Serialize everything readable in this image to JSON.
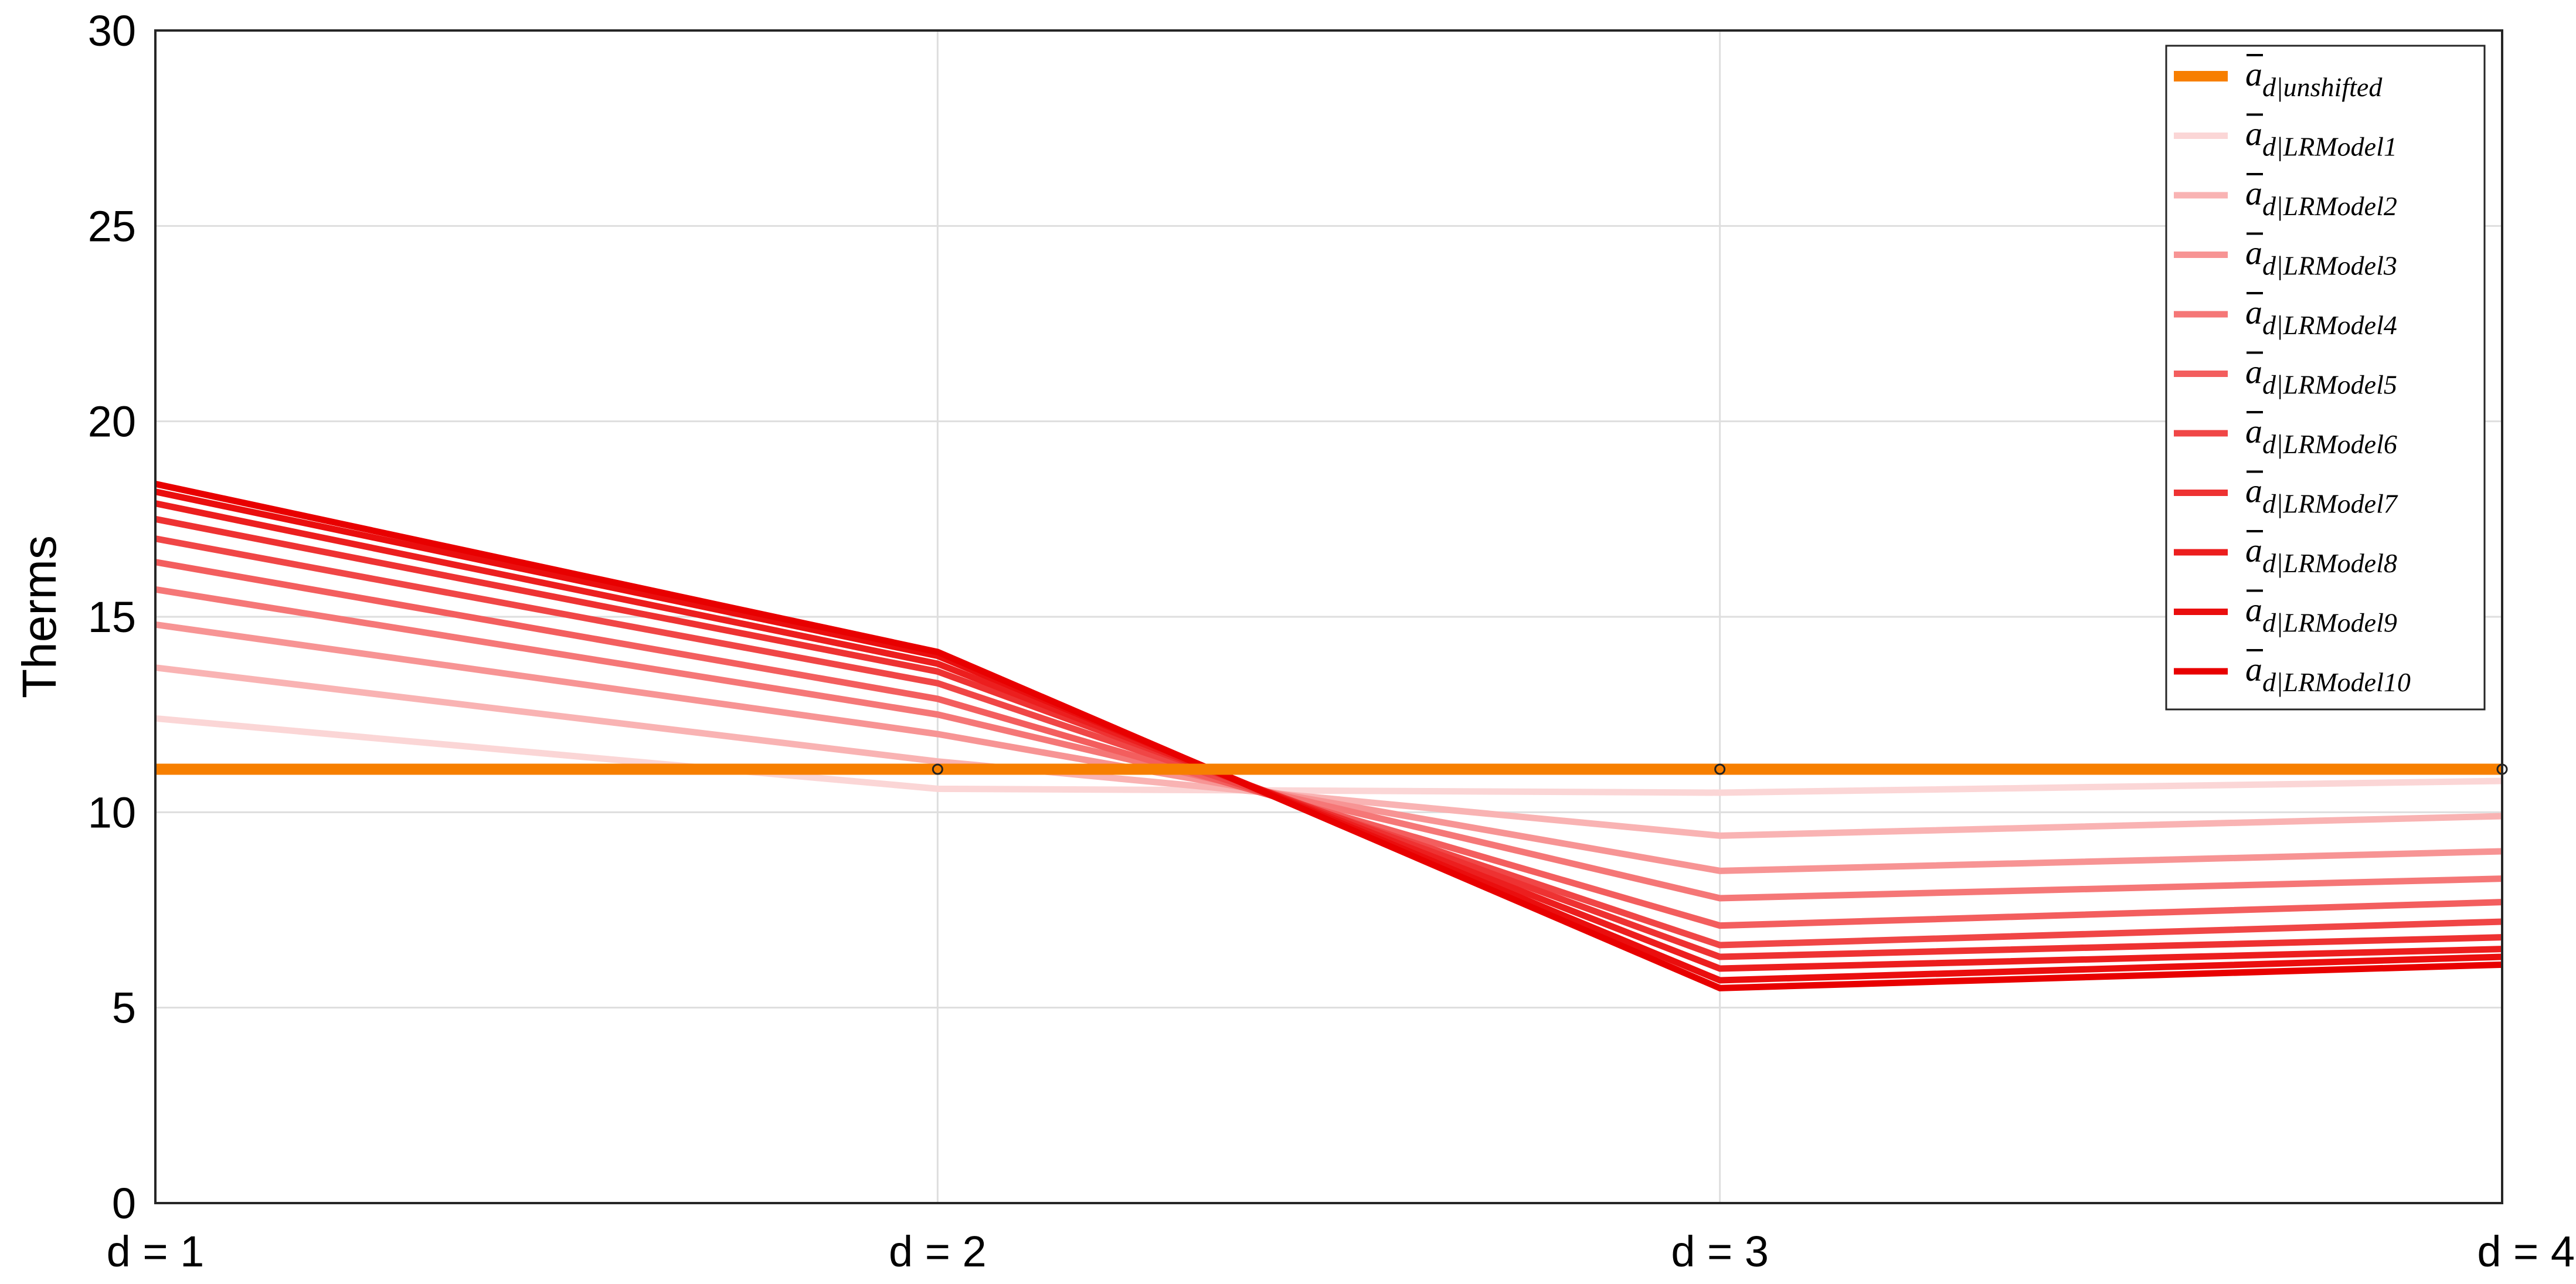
{
  "chart_data": {
    "type": "line",
    "title": "",
    "xlabel": "",
    "ylabel": "Therms",
    "categories": [
      "d  = 1",
      "d  = 2",
      "d  = 3",
      "d  = 4"
    ],
    "x": [
      1,
      2,
      3,
      4
    ],
    "ylim": [
      0,
      30
    ],
    "yticks": [
      "0",
      "5",
      "10",
      "15",
      "20",
      "25",
      "30"
    ],
    "grid": true,
    "legend_position": "top-right",
    "series": [
      {
        "name": "unshifted",
        "values": [
          11.1,
          11.1,
          11.1,
          11.1
        ],
        "color": "#f77f00",
        "markers": true
      },
      {
        "name": "LRModel1",
        "values": [
          12.4,
          10.6,
          10.5,
          10.8
        ],
        "color": "#fbd6d6"
      },
      {
        "name": "LRModel2",
        "values": [
          13.7,
          11.3,
          9.4,
          9.9
        ],
        "color": "#f9b3b3"
      },
      {
        "name": "LRModel3",
        "values": [
          14.8,
          12.0,
          8.5,
          9.0
        ],
        "color": "#f79494"
      },
      {
        "name": "LRModel4",
        "values": [
          15.7,
          12.5,
          7.8,
          8.3
        ],
        "color": "#f57777"
      },
      {
        "name": "LRModel5",
        "values": [
          16.4,
          12.9,
          7.1,
          7.7
        ],
        "color": "#f35e5e"
      },
      {
        "name": "LRModel6",
        "values": [
          17.0,
          13.3,
          6.6,
          7.2
        ],
        "color": "#f04646"
      },
      {
        "name": "LRModel7",
        "values": [
          17.5,
          13.6,
          6.3,
          6.8
        ],
        "color": "#ee3232"
      },
      {
        "name": "LRModel8",
        "values": [
          17.9,
          13.8,
          6.0,
          6.5
        ],
        "color": "#ec1e1e"
      },
      {
        "name": "LRModel9",
        "values": [
          18.2,
          14.0,
          5.7,
          6.3
        ],
        "color": "#ea0e0e"
      },
      {
        "name": "LRModel10",
        "values": [
          18.4,
          14.1,
          5.5,
          6.1
        ],
        "color": "#e80000"
      }
    ]
  }
}
